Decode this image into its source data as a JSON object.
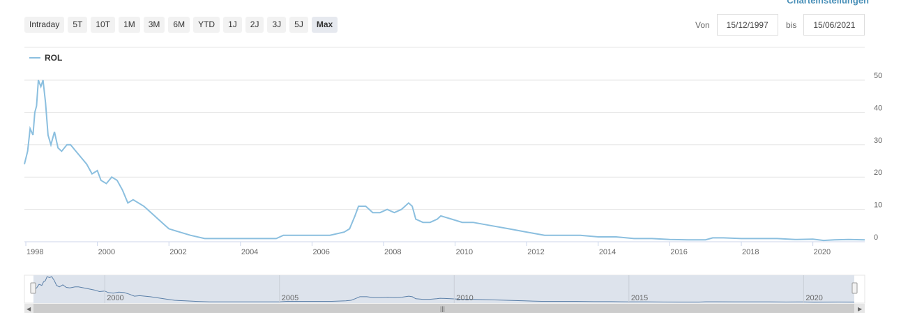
{
  "header": {
    "settings_label": "Charteinstellungen",
    "range_buttons": [
      "Intraday",
      "5T",
      "10T",
      "1M",
      "3M",
      "6M",
      "YTD",
      "1J",
      "2J",
      "3J",
      "5J",
      "Max"
    ],
    "active_range": "Max",
    "from_label": "Von",
    "from_date": "15/12/1997",
    "to_label": "bis",
    "to_date": "15/06/2021"
  },
  "navigator": {
    "year_labels": [
      "2000",
      "2005",
      "2010",
      "2015",
      "2020"
    ]
  },
  "colors": {
    "series": "#8bbfdf",
    "navigator_line": "#5a7fa8",
    "navigator_mask": "#dde3ec"
  },
  "chart_data": {
    "type": "line",
    "title": "",
    "legend_position": "top-left",
    "grid": true,
    "x_tick_labels": [
      "1998",
      "2000",
      "2002",
      "2004",
      "2006",
      "2008",
      "2010",
      "2012",
      "2014",
      "2016",
      "2018",
      "2020"
    ],
    "y_tick_labels": [
      "0",
      "10",
      "20",
      "30",
      "40",
      "50"
    ],
    "xlim": [
      1997.96,
      2021.45
    ],
    "ylim": [
      0,
      50
    ],
    "y_axis_side": "right",
    "series": [
      {
        "name": "ROL",
        "x": [
          1997.96,
          1998.05,
          1998.12,
          1998.2,
          1998.25,
          1998.3,
          1998.35,
          1998.42,
          1998.48,
          1998.55,
          1998.62,
          1998.7,
          1998.8,
          1998.9,
          1999.0,
          1999.15,
          1999.25,
          1999.4,
          1999.55,
          1999.7,
          1999.85,
          2000.0,
          2000.1,
          2000.25,
          2000.4,
          2000.55,
          2000.7,
          2000.85,
          2001.0,
          2001.3,
          2001.6,
          2001.8,
          2002.0,
          2002.3,
          2002.6,
          2003.0,
          2003.5,
          2004.0,
          2004.5,
          2005.0,
          2005.2,
          2005.5,
          2006.0,
          2006.5,
          2006.9,
          2007.05,
          2007.2,
          2007.3,
          2007.5,
          2007.7,
          2007.9,
          2008.1,
          2008.3,
          2008.5,
          2008.7,
          2008.8,
          2008.9,
          2009.1,
          2009.3,
          2009.5,
          2009.6,
          2009.9,
          2010.2,
          2010.5,
          2011.0,
          2011.5,
          2012.0,
          2012.5,
          2013.0,
          2013.5,
          2014.0,
          2014.5,
          2015.0,
          2015.5,
          2016.0,
          2016.5,
          2017.0,
          2017.2,
          2017.5,
          2018.0,
          2018.5,
          2019.0,
          2019.5,
          2020.0,
          2020.3,
          2020.6,
          2021.0,
          2021.45
        ],
        "values": [
          24,
          28,
          35,
          33,
          40,
          42,
          50,
          48,
          50,
          43,
          33,
          30,
          34,
          29,
          28,
          30,
          30,
          28,
          26,
          24,
          21,
          22,
          19,
          18,
          20,
          19,
          16,
          12,
          13,
          11,
          8,
          6,
          4,
          3,
          2,
          1,
          1,
          1,
          1,
          1,
          2,
          2,
          2,
          2,
          3,
          4,
          8,
          11,
          11,
          9,
          9,
          10,
          9,
          10,
          12,
          11,
          7,
          6,
          6,
          7,
          8,
          7,
          6,
          6,
          5,
          4,
          3,
          2,
          2,
          2,
          1.5,
          1.5,
          1,
          1,
          0.7,
          0.6,
          0.6,
          1.2,
          1.2,
          1,
          1,
          1,
          0.7,
          0.8,
          0.4,
          0.6,
          0.7,
          0.6
        ]
      }
    ]
  }
}
